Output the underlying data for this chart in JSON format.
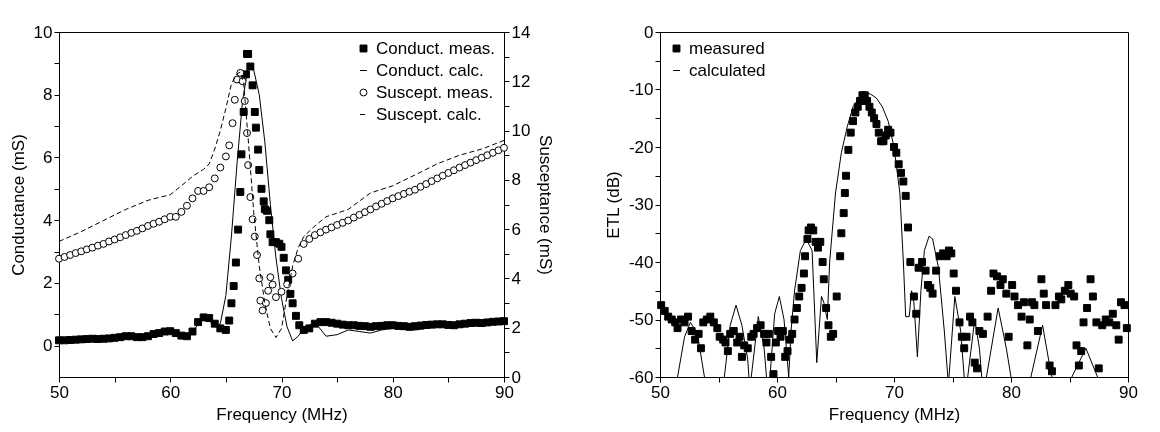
{
  "chart_data": [
    {
      "type": "scatter",
      "xlabel": "Frequency (MHz)",
      "ylabel": "Conductance (mS)",
      "y2label": "Susceptance (mS)",
      "xlim": [
        50,
        90
      ],
      "ylim": [
        -1,
        10
      ],
      "y2lim": [
        0,
        14
      ],
      "xticks": [
        50,
        {
          "value": 55,
          "label": null
        },
        60,
        {
          "value": 65,
          "label": null
        },
        70,
        {
          "value": 75,
          "label": null
        },
        80,
        {
          "value": 85,
          "label": null
        },
        90
      ],
      "yticks": [
        0,
        {
          "value": 1,
          "label": null
        },
        2,
        {
          "value": 3,
          "label": null
        },
        4,
        {
          "value": 5,
          "label": null
        },
        6,
        {
          "value": 7,
          "label": null
        },
        8,
        {
          "value": 9,
          "label": null
        },
        10
      ],
      "y2ticks": [
        0,
        {
          "value": 1,
          "label": null
        },
        2,
        {
          "value": 3,
          "label": null
        },
        4,
        {
          "value": 5,
          "label": null
        },
        6,
        {
          "value": 7,
          "label": null
        },
        8,
        {
          "value": 9,
          "label": null
        },
        10,
        {
          "value": 11,
          "label": null
        },
        12,
        {
          "value": 13,
          "label": null
        },
        14
      ],
      "grid": false,
      "legend": "top right",
      "series": [
        {
          "name": "Conduct. meas.",
          "marker": "square",
          "color": "#000000",
          "x": [
            50,
            50.5,
            51,
            51.5,
            52,
            52.5,
            53,
            53.5,
            54,
            54.5,
            55,
            55.5,
            56,
            56.5,
            57,
            57.5,
            58,
            58.5,
            59,
            59.5,
            60,
            60.5,
            61,
            61.5,
            62,
            62.5,
            63,
            63.5,
            64,
            64.5,
            65,
            65.3,
            65.5,
            65.7,
            65.9,
            66.1,
            66.3,
            66.4,
            66.6,
            66.8,
            66.9,
            67.0,
            67.2,
            67.4,
            67.6,
            67.7,
            67.9,
            68.0,
            68.2,
            68.4,
            68.5,
            68.7,
            68.9,
            69.0,
            69.2,
            69.5,
            69.8,
            70.0,
            70.2,
            70.4,
            70.6,
            70.8,
            71.0,
            71.3,
            71.6,
            72,
            72.5,
            73,
            73.5,
            74,
            74.5,
            75,
            75.5,
            76,
            76.5,
            77,
            77.5,
            78,
            78.5,
            79,
            79.5,
            80,
            80.5,
            81,
            81.5,
            82,
            82.5,
            83,
            83.5,
            84,
            84.5,
            85,
            85.5,
            86,
            86.5,
            87,
            87.5,
            88,
            88.5,
            89,
            89.5,
            90
          ],
          "values": [
            0.17,
            0.17,
            0.18,
            0.19,
            0.2,
            0.21,
            0.22,
            0.21,
            0.22,
            0.23,
            0.25,
            0.27,
            0.3,
            0.3,
            0.27,
            0.27,
            0.3,
            0.37,
            0.4,
            0.45,
            0.46,
            0.4,
            0.32,
            0.3,
            0.45,
            0.75,
            0.9,
            0.88,
            0.7,
            0.55,
            0.5,
            0.8,
            1.35,
            1.9,
            2.65,
            3.7,
            4.9,
            6.1,
            7.45,
            8.65,
            9.3,
            9.3,
            8.9,
            8.3,
            7.45,
            6.95,
            6.25,
            5.6,
            5.0,
            4.6,
            4.35,
            4.3,
            4.0,
            3.55,
            3.3,
            3.3,
            3.25,
            3.15,
            2.8,
            2.4,
            2.1,
            1.65,
            1.35,
            0.95,
            0.65,
            0.5,
            0.55,
            0.7,
            0.75,
            0.75,
            0.73,
            0.7,
            0.67,
            0.65,
            0.65,
            0.63,
            0.62,
            0.6,
            0.62,
            0.63,
            0.65,
            0.65,
            0.63,
            0.62,
            0.6,
            0.62,
            0.64,
            0.66,
            0.67,
            0.68,
            0.68,
            0.66,
            0.65,
            0.68,
            0.7,
            0.72,
            0.73,
            0.72,
            0.74,
            0.76,
            0.77,
            0.78
          ]
        },
        {
          "name": "Conduct. calc.",
          "type": "line",
          "line_style": "solid",
          "color": "#000000",
          "x": [
            50,
            52,
            54,
            56,
            58,
            59,
            60,
            61,
            62,
            62.5,
            63,
            63.5,
            64,
            64.5,
            65,
            65.5,
            66,
            66.5,
            67,
            67.4,
            68,
            68.5,
            69,
            69.5,
            70,
            70.5,
            71,
            71.5,
            72,
            73,
            74,
            75,
            76,
            77,
            78,
            79,
            80,
            82,
            84,
            86,
            88,
            90
          ],
          "values": [
            0.15,
            0.18,
            0.2,
            0.27,
            0.28,
            0.38,
            0.42,
            0.3,
            0.4,
            0.7,
            0.85,
            0.8,
            0.6,
            0.7,
            1.6,
            3.5,
            5.8,
            7.8,
            8.9,
            8.95,
            8.0,
            6.5,
            4.5,
            2.8,
            1.5,
            0.6,
            0.15,
            0.3,
            0.55,
            0.75,
            0.3,
            0.35,
            0.5,
            0.45,
            0.4,
            0.5,
            0.55,
            0.5,
            0.6,
            0.6,
            0.65,
            0.7
          ]
        },
        {
          "name": "Suscept. meas.",
          "marker": "circle",
          "axis": "y2",
          "color": "#000000",
          "x": [
            50,
            50.5,
            51,
            51.5,
            52,
            52.5,
            53,
            53.5,
            54,
            54.5,
            55,
            55.5,
            56,
            56.5,
            57,
            57.5,
            58,
            58.5,
            59,
            59.5,
            60,
            60.5,
            61,
            61.5,
            62,
            62.5,
            63,
            63.5,
            64,
            64.5,
            65,
            65.3,
            65.6,
            65.8,
            66,
            66.3,
            66.5,
            66.7,
            66.9,
            67.0,
            67.2,
            67.4,
            67.6,
            67.8,
            68.0,
            68.1,
            68.3,
            68.6,
            68.8,
            69,
            69.2,
            69.5,
            70,
            70.5,
            71,
            71.5,
            72,
            72.5,
            73,
            73.5,
            74,
            74.5,
            75,
            75.5,
            76,
            76.5,
            77,
            77.5,
            78,
            78.5,
            79,
            79.5,
            80,
            80.5,
            81,
            81.5,
            82,
            82.5,
            83,
            83.5,
            84,
            84.5,
            85,
            85.5,
            86,
            86.5,
            87,
            87.5,
            88,
            88.5,
            89,
            89.5,
            90
          ],
          "values": [
            4.8,
            4.87,
            4.95,
            5.03,
            5.1,
            5.18,
            5.25,
            5.33,
            5.4,
            5.5,
            5.58,
            5.67,
            5.76,
            5.85,
            5.93,
            6.03,
            6.13,
            6.22,
            6.3,
            6.4,
            6.5,
            6.5,
            6.7,
            6.95,
            7.25,
            7.55,
            7.55,
            7.7,
            8.06,
            8.5,
            8.95,
            9.4,
            10.3,
            11.25,
            12.07,
            12.34,
            12.0,
            11.2,
            9.9,
            8.6,
            7.3,
            6.4,
            5.7,
            4.95,
            4.0,
            3.1,
            2.7,
            3.0,
            3.5,
            4.05,
            3.75,
            3.24,
            3.46,
            3.76,
            4.2,
            4.8,
            5.4,
            5.6,
            5.76,
            5.87,
            5.98,
            6.07,
            6.17,
            6.26,
            6.35,
            6.47,
            6.58,
            6.69,
            6.8,
            6.92,
            7.03,
            7.14,
            7.25,
            7.34,
            7.43,
            7.52,
            7.6,
            7.72,
            7.83,
            7.95,
            8.06,
            8.17,
            8.28,
            8.39,
            8.5,
            8.6,
            8.7,
            8.8,
            8.9,
            9.0,
            9.1,
            9.2,
            9.3
          ]
        },
        {
          "name": "Suscept. calc.",
          "type": "line",
          "line_style": "dashed",
          "axis": "y2",
          "color": "#000000",
          "x": [
            50,
            52,
            54,
            56,
            58,
            60,
            61,
            62,
            63,
            63.5,
            64,
            64.5,
            65,
            65.5,
            66,
            66.3,
            66.6,
            67,
            67.5,
            68,
            68.5,
            69,
            69.5,
            70,
            70.5,
            71,
            71.5,
            72,
            73,
            74,
            76,
            78,
            80,
            82,
            84,
            86,
            88,
            90
          ],
          "values": [
            5.5,
            5.9,
            6.35,
            6.8,
            7.17,
            7.4,
            7.76,
            8.14,
            8.43,
            8.65,
            9.25,
            10.0,
            10.9,
            11.9,
            12.3,
            12.37,
            11.9,
            9.7,
            6.7,
            4.5,
            3.0,
            1.97,
            1.6,
            1.97,
            3.3,
            4.5,
            5.24,
            5.7,
            6.13,
            6.5,
            6.8,
            7.47,
            7.76,
            8.2,
            8.65,
            9.0,
            9.25,
            9.6
          ]
        }
      ]
    },
    {
      "type": "scatter",
      "xlabel": "Frequency (MHz)",
      "ylabel": "ETL (dB)",
      "xlim": [
        50,
        90
      ],
      "ylim": [
        -60,
        0
      ],
      "xticks": [
        50,
        {
          "value": 55,
          "label": null
        },
        60,
        {
          "value": 65,
          "label": null
        },
        70,
        {
          "value": 75,
          "label": null
        },
        80,
        {
          "value": 85,
          "label": null
        },
        90
      ],
      "yticks": [
        -60,
        {
          "value": -55,
          "label": null
        },
        -50,
        {
          "value": -45,
          "label": null
        },
        -40,
        {
          "value": -35,
          "label": null
        },
        -30,
        {
          "value": -25,
          "label": null
        },
        -20,
        {
          "value": -15,
          "label": null
        },
        -10,
        {
          "value": -5,
          "label": null
        },
        0
      ],
      "grid": false,
      "legend": "top left",
      "series": [
        {
          "name": "measured",
          "marker": "square",
          "color": "#000000",
          "x": [
            50.1,
            50.4,
            50.7,
            51,
            51.3,
            51.5,
            51.8,
            52.1,
            52.4,
            52.7,
            53,
            53.3,
            53.5,
            53.7,
            54,
            54.3,
            54.6,
            54.9,
            55.1,
            55.4,
            55.6,
            55.8,
            56,
            56.3,
            56.6,
            56.8,
            57,
            57.2,
            57.5,
            57.8,
            58,
            58.3,
            58.6,
            58.9,
            59.1,
            59.3,
            59.5,
            59.7,
            59.9,
            60.1,
            60.3,
            60.5,
            60.7,
            60.9,
            61.1,
            61.3,
            61.5,
            61.7,
            61.9,
            62.1,
            62.3,
            62.4,
            62.6,
            62.7,
            62.9,
            63.1,
            63.3,
            63.5,
            63.7,
            63.9,
            64.0,
            64.2,
            64.4,
            64.6,
            64.8,
            65.1,
            65.4,
            65.5,
            65.7,
            65.8,
            65.9,
            66.1,
            66.3,
            66.5,
            66.7,
            66.9,
            67.1,
            67.3,
            67.5,
            67.7,
            67.9,
            68.1,
            68.3,
            68.5,
            68.7,
            68.9,
            69.1,
            69.3,
            69.5,
            69.7,
            70.0,
            70.2,
            70.4,
            70.6,
            70.8,
            71.0,
            71.2,
            71.4,
            71.7,
            71.9,
            72.1,
            72.4,
            72.7,
            72.9,
            73.1,
            73.3,
            73.6,
            73.9,
            74.2,
            74.5,
            74.7,
            74.9,
            75.1,
            75.3,
            75.6,
            75.8,
            76,
            76.2,
            76.5,
            76.7,
            76.9,
            77.1,
            77.3,
            77.6,
            78,
            78.3,
            78.5,
            78.8,
            79.1,
            79.3,
            79.6,
            79.8,
            80.1,
            80.3,
            80.6,
            80.9,
            81.1,
            81.4,
            81.6,
            81.8,
            82,
            82.3,
            82.6,
            82.8,
            83,
            83.3,
            83.5,
            83.8,
            84.1,
            84.3,
            84.6,
            84.9,
            85.1,
            85.4,
            85.6,
            85.8,
            86,
            86.2,
            86.5,
            86.8,
            87,
            87.3,
            87.5,
            87.8,
            88.1,
            88.4,
            88.7,
            89,
            89.2,
            89.4,
            89.7,
            89.9
          ],
          "values": [
            -47.5,
            -48.5,
            -49.5,
            -50,
            -50.5,
            -51.5,
            -50,
            -50.5,
            -49.5,
            -52,
            -53.5,
            -52.5,
            -55,
            -50.5,
            -50,
            -49.5,
            -50.5,
            -51.5,
            -53,
            -53.5,
            -54,
            -55.5,
            -52.5,
            -52,
            -54,
            -53,
            -56.5,
            -54.5,
            -55,
            -53,
            -52.5,
            -51.5,
            -51,
            -52.5,
            -54,
            -52.5,
            -56.5,
            -59.5,
            -54,
            -52,
            -53,
            -52,
            -56.5,
            -55.5,
            -53.5,
            -52.5,
            -50,
            -48,
            -46,
            -44.5,
            -42,
            -39,
            -36,
            -34.5,
            -34,
            -34.5,
            -36.5,
            -37.5,
            -36.5,
            -40,
            -43,
            -48,
            -51,
            -53,
            -52.5,
            -46,
            -39,
            -35,
            -31.5,
            -28,
            -25,
            -20.5,
            -17.5,
            -15.5,
            -14,
            -13,
            -12,
            -11,
            -11,
            -12,
            -13,
            -14,
            -15,
            -16,
            -17.5,
            -19,
            -19,
            -18,
            -17,
            -17.5,
            -20,
            -21,
            -23,
            -24.5,
            -26,
            -28.5,
            -34,
            -40,
            -46,
            -49,
            -41,
            -40,
            -41.5,
            -44,
            -44.5,
            -45.5,
            -41.5,
            -39,
            -38.5,
            -39,
            -38,
            -38.5,
            -42,
            -45,
            -50.5,
            -53,
            -55,
            -53,
            -49.5,
            -50.5,
            -57.5,
            -58.5,
            -52,
            -52.5,
            -49.5,
            -45,
            -42,
            -42.5,
            -44,
            -43,
            -45.5,
            -53,
            -44,
            -46,
            -47.5,
            -49.5,
            -47,
            -54.5,
            -50,
            -47,
            -47.5,
            -52,
            -43,
            -45.5,
            -47.5,
            -58,
            -59,
            -47.5,
            -46,
            -46.5,
            -45,
            -44,
            -45.5,
            -46,
            -54.5,
            -58,
            -55.5,
            -50.5,
            -48,
            -43,
            -46,
            -50.5,
            -58.5,
            -51,
            -50,
            -50.5,
            -49,
            -51,
            -53.5,
            -47,
            -47.5,
            -51.5
          ]
        },
        {
          "name": "calculated",
          "type": "line",
          "line_style": "solid",
          "color": "#000000",
          "x": [
            51.5,
            52.1,
            52.6,
            53.2,
            53.8,
            54.6,
            55.5,
            56,
            56.5,
            57,
            57.5,
            57.6,
            57.7,
            57.8,
            58.4,
            58.9,
            59.1,
            59.3,
            59.4,
            59.8,
            60.2,
            60.6,
            61,
            61.2,
            61.5,
            62,
            62.5,
            63,
            63.4,
            63.8,
            64,
            64.3,
            64.5,
            65,
            65.5,
            66,
            66.5,
            67,
            67.5,
            68,
            68.5,
            69,
            69.5,
            70,
            70.5,
            70.8,
            71,
            71.3,
            71.5,
            71.7,
            72,
            72.3,
            72.6,
            73,
            73.3,
            73.8,
            74.3,
            74.6,
            74.65,
            74.7,
            75.2,
            75.7,
            76,
            76.15,
            76.3,
            76.9,
            77.3,
            77.5,
            77.7,
            77.9,
            78.9,
            79.6,
            80,
            80.8,
            81.7,
            82.7,
            83.3,
            83.5,
            84.3,
            85.2,
            86.4,
            87,
            87.4
          ],
          "values": [
            -60,
            -53,
            -50.5,
            -52.5,
            -60,
            null,
            -60,
            -51,
            -47.5,
            -51,
            -57,
            -60,
            null,
            -60,
            -49.5,
            -55,
            -60,
            null,
            -60,
            -49,
            -46,
            -50,
            -60,
            -52,
            -45,
            -38,
            -36,
            -38,
            -57.5,
            -46,
            -47,
            -50,
            -40,
            -28,
            -21,
            -16.5,
            -13,
            -11.5,
            -10.5,
            -10.8,
            -11.5,
            -13,
            -15.5,
            -20,
            -28,
            -40,
            -49.5,
            -49.5,
            -45,
            -47,
            -56.5,
            -45,
            -38,
            -35.5,
            -36,
            -41,
            -52,
            -60,
            null,
            -60,
            -46,
            -52,
            -60,
            null,
            -60,
            -50,
            -55,
            -60,
            null,
            -60,
            -48,
            -55,
            -60,
            null,
            -60,
            -51,
            -58,
            -60,
            null,
            -60,
            -55,
            -58,
            -60
          ]
        }
      ]
    }
  ]
}
